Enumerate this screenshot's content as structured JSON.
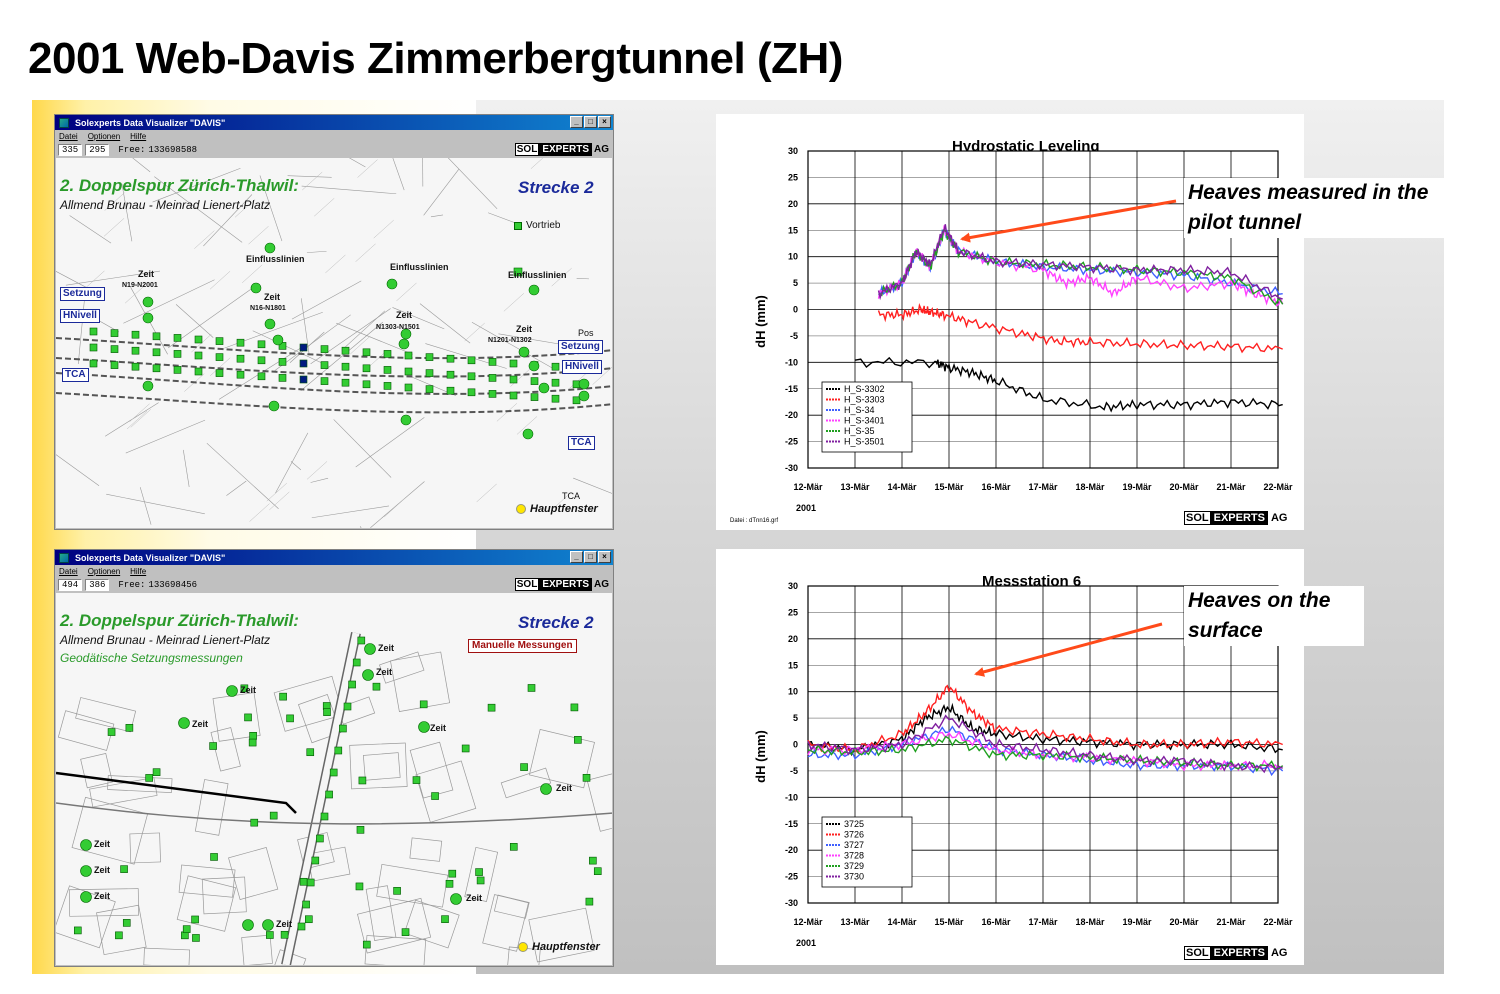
{
  "slide": {
    "title": "2001 Web-Davis Zimmerbergtunnel (ZH)"
  },
  "windows": [
    {
      "title": "Solexperts Data Visualizer   \"DAVIS\"",
      "menu": [
        "Datei",
        "Optionen",
        "Hilfe"
      ],
      "coord_x": "335",
      "coord_y": "295",
      "free_label": "Free:",
      "free_value": "133698588",
      "logo": {
        "sol": "SOL",
        "experts": "EXPERTS",
        "ag": "AG"
      },
      "map_title": "2. Doppelspur Zürich-Thalwil:",
      "map_subtitle": "Allmend Brunau - Meinrad Lienert-Platz",
      "strecke": "Strecke 2",
      "legend_vortrieb": "Vortrieb",
      "boxes": [
        "Setzung",
        "HNivell",
        "TCA",
        "Setzung",
        "HNivell",
        "TCA"
      ],
      "labels": [
        "Einflusslinien",
        "Einflusslinien",
        "Einflusslinien",
        "Zeit",
        "N19-N2001",
        "Zeit",
        "N16-N1801",
        "Zeit",
        "N1303-N1501",
        "Zeit",
        "N1201-N1302",
        "Pos",
        "TCA"
      ],
      "hauptfenster": "Hauptfenster"
    },
    {
      "title": "Solexperts Data Visualizer   \"DAVIS\"",
      "menu": [
        "Datei",
        "Optionen",
        "Hilfe"
      ],
      "coord_x": "494",
      "coord_y": "386",
      "free_label": "Free:",
      "free_value": "133698456",
      "logo": {
        "sol": "SOL",
        "experts": "EXPERTS",
        "ag": "AG"
      },
      "map_title": "2. Doppelspur Zürich-Thalwil:",
      "map_subtitle": "Allmend Brunau - Meinrad Lienert-Platz",
      "map_subtitle2": "Geodätische Setzungsmessungen",
      "strecke": "Strecke 2",
      "manuelle": "Manuelle Messungen",
      "labels": [
        "Zeit",
        "Zeit",
        "Zeit",
        "Zeit",
        "Zeit",
        "Zeit",
        "Zeit",
        "Zeit",
        "Zeit",
        "Zeit",
        "Zeit"
      ],
      "hauptfenster": "Hauptfenster"
    }
  ],
  "chart_data": [
    {
      "type": "line",
      "title": "Hydrostatic Leveling",
      "ylabel": "dH (mm)",
      "xlabel": "",
      "x": [
        "12-Mär",
        "13-Mär",
        "14-Mär",
        "15-Mär",
        "16-Mär",
        "17-Mär",
        "18-Mär",
        "19-Mär",
        "20-Mär",
        "21-Mär",
        "22-Mär"
      ],
      "x_year": "2001",
      "ylim": [
        -30,
        30
      ],
      "yticks": [
        30,
        25,
        20,
        15,
        10,
        5,
        0,
        -5,
        -10,
        -15,
        -20,
        -25,
        -30
      ],
      "grid": true,
      "legend_position": "bottom-left",
      "series": [
        {
          "name": "H_S-3302",
          "color": "#000000",
          "points": [
            [
              1,
              -10
            ],
            [
              2.7,
              -10
            ],
            [
              3,
              -11
            ],
            [
              3.5,
              -12
            ],
            [
              4,
              -13.5
            ],
            [
              5,
              -17
            ],
            [
              6.3,
              -18.5
            ],
            [
              7,
              -18
            ],
            [
              8,
              -18
            ],
            [
              9,
              -17.5
            ],
            [
              10.1,
              -18
            ]
          ]
        },
        {
          "name": "H_S-3303",
          "color": "#ff2020",
          "points": [
            [
              1.5,
              -1
            ],
            [
              2,
              -1
            ],
            [
              2.4,
              0
            ],
            [
              2.6,
              -0.5
            ],
            [
              2.9,
              -1
            ],
            [
              3.5,
              -2.5
            ],
            [
              4.5,
              -4.5
            ],
            [
              5.3,
              -6
            ],
            [
              6,
              -6.2
            ],
            [
              7,
              -6.5
            ],
            [
              8,
              -6.8
            ],
            [
              9,
              -7
            ],
            [
              10.1,
              -7.5
            ]
          ]
        },
        {
          "name": "H_S-34",
          "color": "#4060ff",
          "points": [
            [
              1.5,
              3
            ],
            [
              2,
              5
            ],
            [
              2.3,
              11
            ],
            [
              2.6,
              8
            ],
            [
              2.9,
              15
            ],
            [
              3.2,
              11
            ],
            [
              4,
              9
            ],
            [
              5,
              8
            ],
            [
              6,
              7.5
            ],
            [
              7,
              7
            ],
            [
              8,
              6.5
            ],
            [
              9,
              5
            ],
            [
              10.1,
              3
            ]
          ]
        },
        {
          "name": "H_S-3401",
          "color": "#ff40ff",
          "points": [
            [
              1.5,
              3
            ],
            [
              2,
              5
            ],
            [
              2.3,
              11
            ],
            [
              2.6,
              8
            ],
            [
              2.9,
              15
            ],
            [
              3.2,
              11
            ],
            [
              4,
              9
            ],
            [
              5,
              7.5
            ],
            [
              5.5,
              5
            ],
            [
              6,
              6
            ],
            [
              6.5,
              3
            ],
            [
              7,
              6
            ],
            [
              8,
              4
            ],
            [
              9,
              5
            ],
            [
              9.5,
              3
            ],
            [
              10.1,
              1
            ]
          ]
        },
        {
          "name": "H_S-35",
          "color": "#20a020",
          "points": [
            [
              1.5,
              3
            ],
            [
              2,
              5
            ],
            [
              2.3,
              11
            ],
            [
              2.6,
              8
            ],
            [
              2.9,
              15
            ],
            [
              3.2,
              11
            ],
            [
              4,
              9
            ],
            [
              5,
              8.5
            ],
            [
              6,
              8
            ],
            [
              7,
              7.5
            ],
            [
              8,
              7
            ],
            [
              9,
              6
            ],
            [
              10.1,
              1
            ]
          ]
        },
        {
          "name": "H_S-3501",
          "color": "#8020a0",
          "points": [
            [
              1.5,
              3
            ],
            [
              2,
              5
            ],
            [
              2.3,
              11
            ],
            [
              2.6,
              8.5
            ],
            [
              2.9,
              15.5
            ],
            [
              3.2,
              11
            ],
            [
              4,
              9
            ],
            [
              5,
              8.5
            ],
            [
              6,
              8
            ],
            [
              7,
              7.5
            ],
            [
              8,
              7.5
            ],
            [
              9,
              7
            ],
            [
              10.1,
              2
            ]
          ]
        }
      ],
      "annotation": "Heaves measured in the pilot tunnel",
      "footnote": "Datei : dTnn16.grf"
    },
    {
      "type": "line",
      "title": "Messstation 6",
      "ylabel": "dH (mm)",
      "xlabel": "",
      "x": [
        "12-Mär",
        "13-Mär",
        "14-Mär",
        "15-Mär",
        "16-Mär",
        "17-Mär",
        "18-Mär",
        "19-Mär",
        "20-Mär",
        "21-Mär",
        "22-Mär"
      ],
      "x_year": "2001",
      "ylim": [
        -30,
        30
      ],
      "yticks": [
        30,
        25,
        20,
        15,
        10,
        5,
        0,
        -5,
        -10,
        -15,
        -20,
        -25,
        -30
      ],
      "grid": true,
      "legend_position": "bottom-left",
      "series": [
        {
          "name": "3725",
          "color": "#000000",
          "points": [
            [
              0,
              0
            ],
            [
              1,
              -1
            ],
            [
              2,
              1
            ],
            [
              2.5,
              5
            ],
            [
              3,
              7
            ],
            [
              3.5,
              3
            ],
            [
              4,
              2
            ],
            [
              5,
              1
            ],
            [
              6,
              0.5
            ],
            [
              7,
              0
            ],
            [
              8,
              0
            ],
            [
              9,
              0
            ],
            [
              10.1,
              -1
            ]
          ]
        },
        {
          "name": "3726",
          "color": "#ff2020",
          "points": [
            [
              0,
              0
            ],
            [
              1,
              -1
            ],
            [
              2,
              2
            ],
            [
              2.5,
              6
            ],
            [
              3,
              11
            ],
            [
              3.5,
              6
            ],
            [
              4,
              3
            ],
            [
              5,
              2
            ],
            [
              6,
              1
            ],
            [
              7,
              0
            ],
            [
              8,
              0
            ],
            [
              9,
              0.5
            ],
            [
              10.1,
              0
            ]
          ]
        },
        {
          "name": "3727",
          "color": "#4060ff",
          "points": [
            [
              0,
              -2
            ],
            [
              1,
              -2
            ],
            [
              2,
              0
            ],
            [
              3,
              3
            ],
            [
              4,
              -1
            ],
            [
              5,
              -2
            ],
            [
              6,
              -3
            ],
            [
              7,
              -4
            ],
            [
              8,
              -4
            ],
            [
              9,
              -4
            ],
            [
              10.1,
              -5
            ]
          ]
        },
        {
          "name": "3728",
          "color": "#ff40ff",
          "points": [
            [
              0,
              -1
            ],
            [
              1,
              -1
            ],
            [
              2,
              0
            ],
            [
              3,
              2
            ],
            [
              4,
              -1
            ],
            [
              5,
              -2
            ],
            [
              6,
              -2.5
            ],
            [
              7,
              -3
            ],
            [
              8,
              -4
            ],
            [
              9,
              -4
            ],
            [
              10.1,
              -4
            ]
          ]
        },
        {
          "name": "3729",
          "color": "#20a020",
          "points": [
            [
              0,
              -1
            ],
            [
              1,
              -1.5
            ],
            [
              2,
              -1
            ],
            [
              3,
              1
            ],
            [
              4,
              -2
            ],
            [
              5,
              -2
            ],
            [
              6,
              -2.5
            ],
            [
              7,
              -3
            ],
            [
              8,
              -3.5
            ],
            [
              9,
              -4
            ],
            [
              10.1,
              -4
            ]
          ]
        },
        {
          "name": "3730",
          "color": "#8020a0",
          "points": [
            [
              0,
              0
            ],
            [
              1,
              -1
            ],
            [
              2,
              0
            ],
            [
              3,
              5
            ],
            [
              4,
              0
            ],
            [
              5,
              -1
            ],
            [
              6,
              -2
            ],
            [
              7,
              -3
            ],
            [
              8,
              -3
            ],
            [
              9,
              -4
            ],
            [
              10.1,
              -4.5
            ]
          ]
        }
      ],
      "annotation": "Heaves on the surface"
    }
  ],
  "chart_logo": {
    "sol": "SOL",
    "experts": "EXPERTS",
    "ag": "AG"
  },
  "colors": {
    "accent_green": "#2a9a2a",
    "accent_blue": "#1b2a9a",
    "arrow": "#ff4a1a"
  }
}
